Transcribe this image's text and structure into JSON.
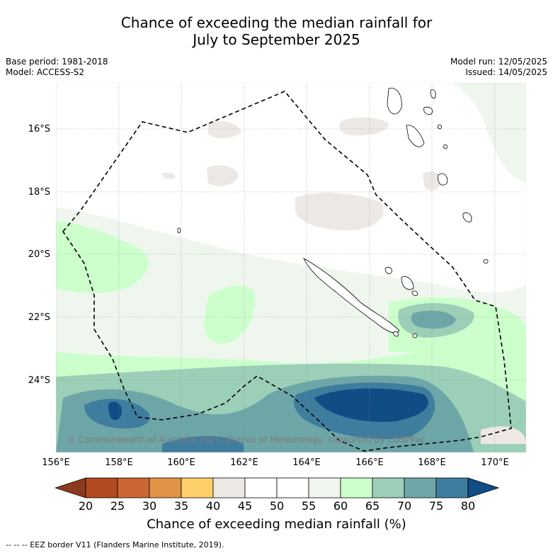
{
  "title": {
    "line1": "Chance of exceeding the median rainfall for",
    "line2": "July to September 2025"
  },
  "meta": {
    "base_period": "Base period: 1981-2018",
    "model": "Model: ACCESS-S2",
    "model_run": "Model run: 12/05/2025",
    "issued": "Issued: 14/05/2025"
  },
  "map": {
    "lat_labels": [
      "16°S",
      "18°S",
      "20°S",
      "22°S",
      "24°S"
    ],
    "lon_labels": [
      "156°E",
      "158°E",
      "160°E",
      "162°E",
      "164°E",
      "166°E",
      "168°E",
      "170°E"
    ],
    "copyright": "© Commonwealth of Australia 2025, Bureau of Meteorology, supported by COSPPac"
  },
  "colorbar": {
    "ticks": [
      "20",
      "25",
      "30",
      "35",
      "40",
      "45",
      "50",
      "55",
      "60",
      "65",
      "70",
      "75",
      "80"
    ],
    "colors": [
      "#8c3a1f",
      "#b24a22",
      "#cc6633",
      "#e09445",
      "#fdd06a",
      "#ede8e4",
      "#ffffff",
      "#ffffff",
      "#eef6ee",
      "#ccffcc",
      "#9ccfb8",
      "#6ea6a8",
      "#3f7d9e",
      "#114d85"
    ],
    "label": "Chance of exceeding median rainfall (%)"
  },
  "footer": "--  --  -- EEZ border V11 (Flanders Marine Institute, 2019)."
}
